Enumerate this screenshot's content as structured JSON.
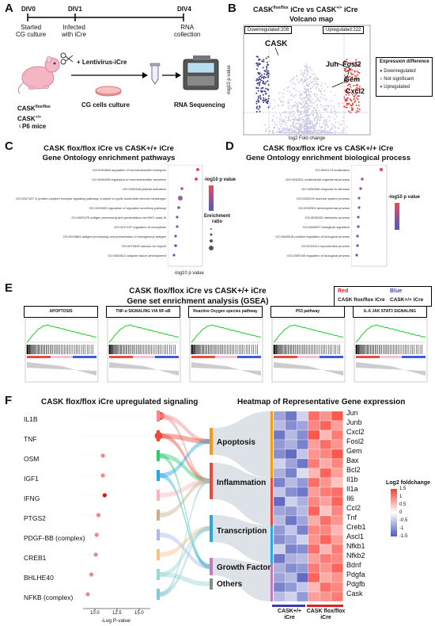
{
  "panelA": {
    "letter": "A",
    "timeline": [
      {
        "label": "DIV0",
        "desc": "Started\nCG culture"
      },
      {
        "label": "DIV1",
        "desc": "Infected\nwith iCre"
      },
      {
        "label": "DIV4",
        "desc": "RNA\ncollection"
      }
    ],
    "lentivirus": "+ Lentivirus-iCre",
    "culture": "CG cells culture",
    "sequencing": "RNA Sequencing",
    "mice_line1": "CASK",
    "mice_line1_sup": "flox/flox",
    "mice_line2": "CASK",
    "mice_line2_sup": "+/+",
    "mice_line3": "♀P6 mice"
  },
  "panelB": {
    "letter": "B",
    "title_main": "CASK",
    "title_sup1": "flox/flox",
    "title_mid": " iCre vs CASK",
    "title_sup2": "+/+",
    "title_end": " iCre",
    "subtitle": "Volcano map",
    "down_label": "Downregulated:208",
    "up_label": "Upregulated:222",
    "ylabel": "-log10 p value",
    "xlabel": "log2 Fold change",
    "legend_title": "Expression difference",
    "legend_items": [
      "Downregulated",
      "Not significant",
      "Upregulated"
    ],
    "genes": [
      "CASK",
      "Jun",
      "Fosl2",
      "Gem",
      "Cxcl2"
    ],
    "colors": {
      "down": "#3a3a8c",
      "ns": "#c8c8e6",
      "up": "#e8453c"
    }
  },
  "panelC": {
    "letter": "C",
    "title1": "CASK flox/flox iCre vs CASK+/+ iCre",
    "title2": "Gene Ontology enrichment pathways",
    "terms": [
      "GO:0051588 regulation of neurotransmitter transport",
      "GO:0046928 regulation of neurotransmitter secretion",
      "GO:0030168 platelet activation",
      "GO:0007187 G protein-coupled receptor signaling pathway, coupled to cyclic nucleotide second messenger",
      "GO:1903305 regulation of regulated secretory pathway",
      "GO:0002475 antigen processing and presentation via MHC class Ib",
      "GO:0017157 regulation of exocytosis",
      "GO:0019883 antigen processing and presentation of endogenous antigen",
      "GO:0070509 calcium ion import",
      "GO:0060612 adipose tissue development"
    ],
    "legend_p": "-log10 p value",
    "legend_ratio_line1": "Enrichment",
    "legend_ratio_line2": "ratio",
    "xlabel": "-log10 p value"
  },
  "panelD": {
    "letter": "D",
    "title1": "CASK flox/flox iCre vs CASK+/+ iCre",
    "title2": "Gene Ontology enrichment biological process",
    "terms": [
      "GO:0051179 localization",
      "GO:0032501 multicellular organismal process",
      "GO:0050896 response to stimulus",
      "GO:0002376 immune system process",
      "GO:0032502 developmental process",
      "GO:0008152 metabolic process",
      "GO:0065007 biological regulation",
      "GO:0048518 positive regulation of biological process",
      "GO:0022414 reproductive process",
      "GO:0050789 regulation of biological process"
    ],
    "legend_p": "-log10 p value"
  },
  "panelE": {
    "letter": "E",
    "title1": "CASK flox/flox iCre vs CASK+/+ iCre",
    "title2": "Gene set enrichment analysis (GSEA)",
    "legend_red": "Red",
    "legend_blue": "Blue",
    "legend_left": "CASK flox/flox iCre",
    "legend_right": "CASK+/+ iCre",
    "sets": [
      "APOPTOSIS",
      "TNF-α SIGNALING VIA NF-κB",
      "Reactive Oxygen species pathway",
      "P53 pathway",
      "IL-6 JAK STAT3 SIGNALING"
    ]
  },
  "panelF": {
    "letter": "F",
    "title_left": "CASK flox/flox iCre upregulated signaling",
    "title_right": "Heatmap of Representative Gene expression",
    "factors": [
      "IL1B",
      "TNF",
      "OSM",
      "IGF1",
      "IFNG",
      "PTGS2",
      "PDGF-BB (complex)",
      "CREB1",
      "BHLHE40",
      "NFKB (complex)"
    ],
    "factor_logp": [
      17.4,
      17.2,
      10.9,
      10.9,
      11.1,
      10.4,
      10.2,
      10.1,
      9.6,
      9.2
    ],
    "x_ticks": [
      "10.0",
      "12.5",
      "15.0"
    ],
    "xlabel": "-Log P-value",
    "categories": [
      "Apoptosis",
      "Inflammation",
      "Transcription",
      "Growth Factor",
      "Others"
    ],
    "category_colors": [
      "#f39c12",
      "#e74c3c",
      "#29a8e0",
      "#c27ab8",
      "#8a8a8a"
    ],
    "genes": [
      "Jun",
      "Junb",
      "Cxcl2",
      "Fosl2",
      "Gem",
      "Bax",
      "Bcl2",
      "Il1b",
      "Il1a",
      "Il6",
      "Ccl2",
      "Tnf",
      "Creb1",
      "Ascl1",
      "Nfkb1",
      "Nfkb2",
      "Bdnf",
      "Pdgfa",
      "Pdgfb",
      "Cask"
    ],
    "legend_title": "Log2 foldchange",
    "legend_ticks": [
      "1.5",
      "1",
      "0.5",
      "0",
      "-0.5",
      "-1",
      "-1.5"
    ],
    "group_left": "CASK+/+ iCre",
    "group_right": "CASK flox/flox iCre"
  }
}
